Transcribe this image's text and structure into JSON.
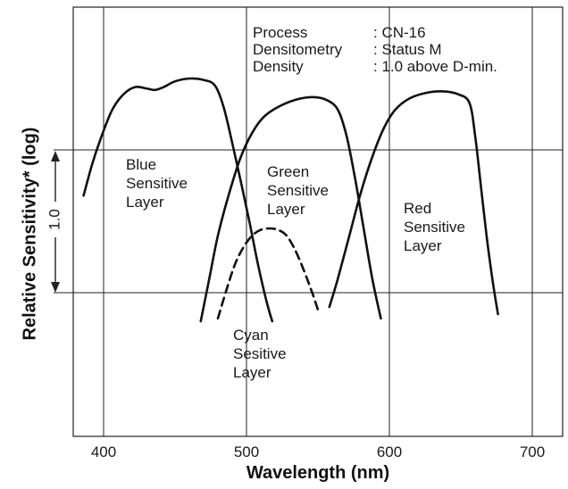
{
  "chart_data": {
    "type": "line",
    "x_axis": {
      "label": "Wavelength (nm)",
      "range": [
        380,
        720
      ],
      "ticks": [
        400,
        500,
        600,
        700
      ],
      "tick_labels": [
        "400",
        "500",
        "600",
        "700"
      ]
    },
    "y_axis": {
      "label": "Relative Sensitivity* (log)",
      "scale": "log",
      "range": [
        -1.5,
        1.2
      ],
      "scale_bar": {
        "label": "1.0",
        "from": -1.0,
        "to": 0.0
      }
    },
    "grid": {
      "vertical": [
        400,
        500,
        600,
        700
      ],
      "horizontal": [
        0.0,
        -1.0
      ]
    },
    "info_block": [
      {
        "key": "Process",
        "value": ": CN-16"
      },
      {
        "key": "Densitometry",
        "value": ": Status M"
      },
      {
        "key": "Density",
        "value": ": 1.0 above D-min."
      }
    ],
    "series": [
      {
        "labels": [
          "Blue",
          "Sensitive",
          "Layer"
        ],
        "dashed": false,
        "points": [
          [
            386,
            -0.32
          ],
          [
            392,
            -0.1
          ],
          [
            398,
            0.08
          ],
          [
            406,
            0.28
          ],
          [
            414,
            0.39
          ],
          [
            422,
            0.44
          ],
          [
            430,
            0.43
          ],
          [
            436,
            0.42
          ],
          [
            442,
            0.44
          ],
          [
            450,
            0.48
          ],
          [
            460,
            0.5
          ],
          [
            470,
            0.49
          ],
          [
            478,
            0.45
          ],
          [
            484,
            0.3
          ],
          [
            490,
            0.05
          ],
          [
            496,
            -0.22
          ],
          [
            502,
            -0.5
          ],
          [
            508,
            -0.8
          ],
          [
            514,
            -1.06
          ],
          [
            518,
            -1.2
          ]
        ]
      },
      {
        "labels": [
          "Green",
          "Sensitive",
          "Layer"
        ],
        "dashed": false,
        "points": [
          [
            468,
            -1.2
          ],
          [
            474,
            -0.9
          ],
          [
            480,
            -0.6
          ],
          [
            488,
            -0.3
          ],
          [
            496,
            -0.05
          ],
          [
            504,
            0.12
          ],
          [
            512,
            0.23
          ],
          [
            522,
            0.3
          ],
          [
            534,
            0.35
          ],
          [
            546,
            0.37
          ],
          [
            556,
            0.35
          ],
          [
            564,
            0.28
          ],
          [
            570,
            0.1
          ],
          [
            576,
            -0.2
          ],
          [
            582,
            -0.55
          ],
          [
            588,
            -0.9
          ],
          [
            594,
            -1.18
          ]
        ]
      },
      {
        "labels": [
          "Cyan",
          "Sesitive",
          "Layer"
        ],
        "dashed": true,
        "points": [
          [
            480,
            -1.18
          ],
          [
            486,
            -0.98
          ],
          [
            492,
            -0.8
          ],
          [
            498,
            -0.68
          ],
          [
            504,
            -0.6
          ],
          [
            510,
            -0.56
          ],
          [
            516,
            -0.55
          ],
          [
            522,
            -0.56
          ],
          [
            528,
            -0.6
          ],
          [
            534,
            -0.7
          ],
          [
            540,
            -0.84
          ],
          [
            546,
            -1.0
          ],
          [
            550,
            -1.12
          ]
        ]
      },
      {
        "labels": [
          "Red",
          "Sensitive",
          "Layer"
        ],
        "dashed": false,
        "points": [
          [
            558,
            -1.1
          ],
          [
            564,
            -0.9
          ],
          [
            572,
            -0.6
          ],
          [
            580,
            -0.3
          ],
          [
            588,
            -0.05
          ],
          [
            596,
            0.15
          ],
          [
            604,
            0.28
          ],
          [
            614,
            0.36
          ],
          [
            626,
            0.4
          ],
          [
            638,
            0.41
          ],
          [
            648,
            0.39
          ],
          [
            656,
            0.33
          ],
          [
            660,
            0.1
          ],
          [
            664,
            -0.25
          ],
          [
            668,
            -0.6
          ],
          [
            672,
            -0.9
          ],
          [
            676,
            -1.15
          ]
        ]
      }
    ]
  }
}
